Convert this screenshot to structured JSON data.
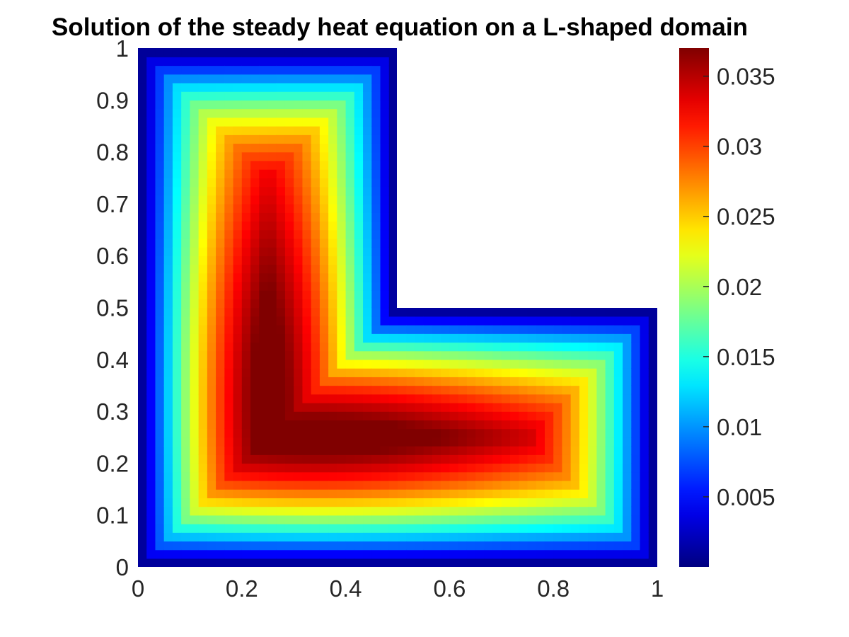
{
  "chart_data": {
    "type": "heatmap",
    "title": "Solution of the steady heat equation on a L-shaped domain",
    "xlabel": "",
    "ylabel": "",
    "xlim": [
      0,
      1
    ],
    "ylim": [
      0,
      1
    ],
    "x_ticks": [
      "0",
      "0.2",
      "0.4",
      "0.6",
      "0.8",
      "1"
    ],
    "y_ticks": [
      "0",
      "0.1",
      "0.2",
      "0.3",
      "0.4",
      "0.5",
      "0.6",
      "0.7",
      "0.8",
      "0.9",
      "1"
    ],
    "x_tick_values": [
      0,
      0.2,
      0.4,
      0.6,
      0.8,
      1
    ],
    "y_tick_values": [
      0,
      0.1,
      0.2,
      0.3,
      0.4,
      0.5,
      0.6,
      0.7,
      0.8,
      0.9,
      1
    ],
    "domain": "L-shaped: [0,1]x[0,0.5] union [0,0.5]x[0.5,1]",
    "colormap": "jet",
    "color_range": [
      0,
      0.037
    ],
    "colorbar_ticks": [
      "0.005",
      "0.01",
      "0.015",
      "0.02",
      "0.025",
      "0.03",
      "0.035"
    ],
    "colorbar_tick_values": [
      0.005,
      0.01,
      0.015,
      0.02,
      0.025,
      0.03,
      0.035
    ],
    "max_value": 0.037,
    "max_location": [
      0.34,
      0.32
    ],
    "grid": false
  }
}
